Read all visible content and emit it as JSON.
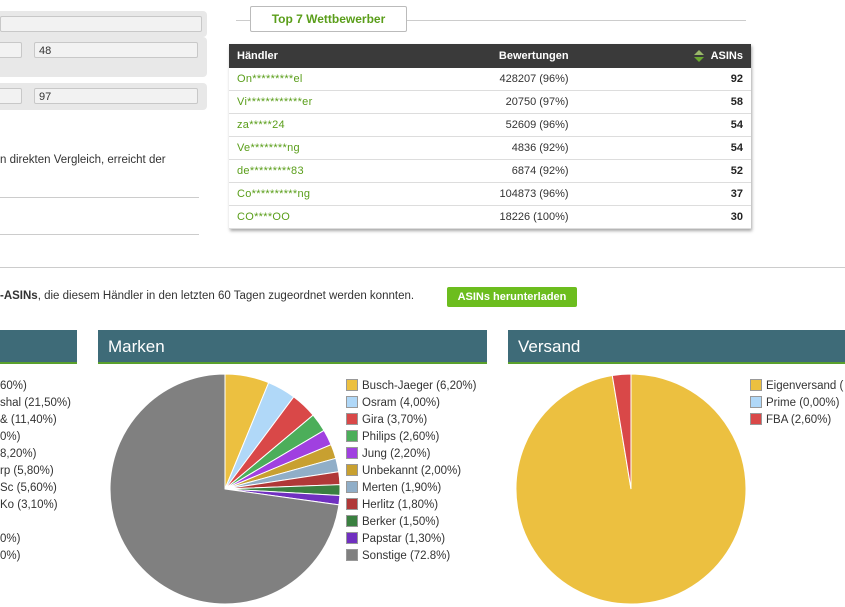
{
  "form": {
    "field_a_value": "48",
    "field_b_value": "97",
    "compare_text": "n direkten Vergleich, erreicht der"
  },
  "competitors": {
    "button_label": "Top 7 Wettbewerber",
    "columns": [
      "Händler",
      "Bewertungen",
      "ASINs"
    ],
    "rows": [
      {
        "name": "On*********el",
        "rating": "428207 (96%)",
        "asins": "92"
      },
      {
        "name": "Vi************er",
        "rating": "20750 (97%)",
        "asins": "58"
      },
      {
        "name": "za*****24",
        "rating": "52609 (96%)",
        "asins": "54"
      },
      {
        "name": "Ve********ng",
        "rating": "4836 (92%)",
        "asins": "54"
      },
      {
        "name": "de*********83",
        "rating": "6874 (92%)",
        "asins": "52"
      },
      {
        "name": "Co**********ng",
        "rating": "104873 (96%)",
        "asins": "37"
      },
      {
        "name": "CO****OO",
        "rating": "18226 (100%)",
        "asins": "30"
      }
    ]
  },
  "asin_line": {
    "bold_part": "-ASINs",
    "rest": ", die diesem Händler in den letzten 60 Tagen zugeordnet werden konnten.",
    "download_button": "ASINs herunterladen"
  },
  "left_legend": [
    "60%)",
    "shal (21,50%)",
    "& (11,40%)",
    "0%)",
    "8,20%)",
    "rp (5,80%)",
    "Sc (5,60%)",
    "Ko (3,10%)",
    "",
    "0%)",
    "0%)"
  ],
  "panels": {
    "marken_title": "Marken",
    "versand_title": "Versand"
  },
  "chart_data": [
    {
      "type": "pie",
      "title": "Marken",
      "labels": [
        "Busch-Jaeger (6,20%)",
        "Osram (4,00%)",
        "Gira (3,70%)",
        "Philips (2,60%)",
        "Jung (2,20%)",
        "Unbekannt (2,00%)",
        "Merten (1,90%)",
        "Herlitz (1,80%)",
        "Berker (1,50%)",
        "Papstar (1,30%)",
        "Sonstige (72.8%)"
      ],
      "values": [
        6.2,
        4.0,
        3.7,
        2.6,
        2.2,
        2.0,
        1.9,
        1.8,
        1.5,
        1.3,
        72.8
      ],
      "colors": [
        "#ecc040",
        "#b0d8f8",
        "#d94848",
        "#4cae5a",
        "#a040e0",
        "#c8a030",
        "#90aec8",
        "#b03838",
        "#3a8040",
        "#7030c0",
        "#808080"
      ]
    },
    {
      "type": "pie",
      "title": "Versand",
      "labels": [
        "Eigenversand (",
        "Prime (0,00%)",
        "FBA (2,60%)"
      ],
      "values": [
        97.4,
        0.0,
        2.6
      ],
      "colors": [
        "#ecc040",
        "#b0d8f8",
        "#d94848"
      ]
    }
  ]
}
